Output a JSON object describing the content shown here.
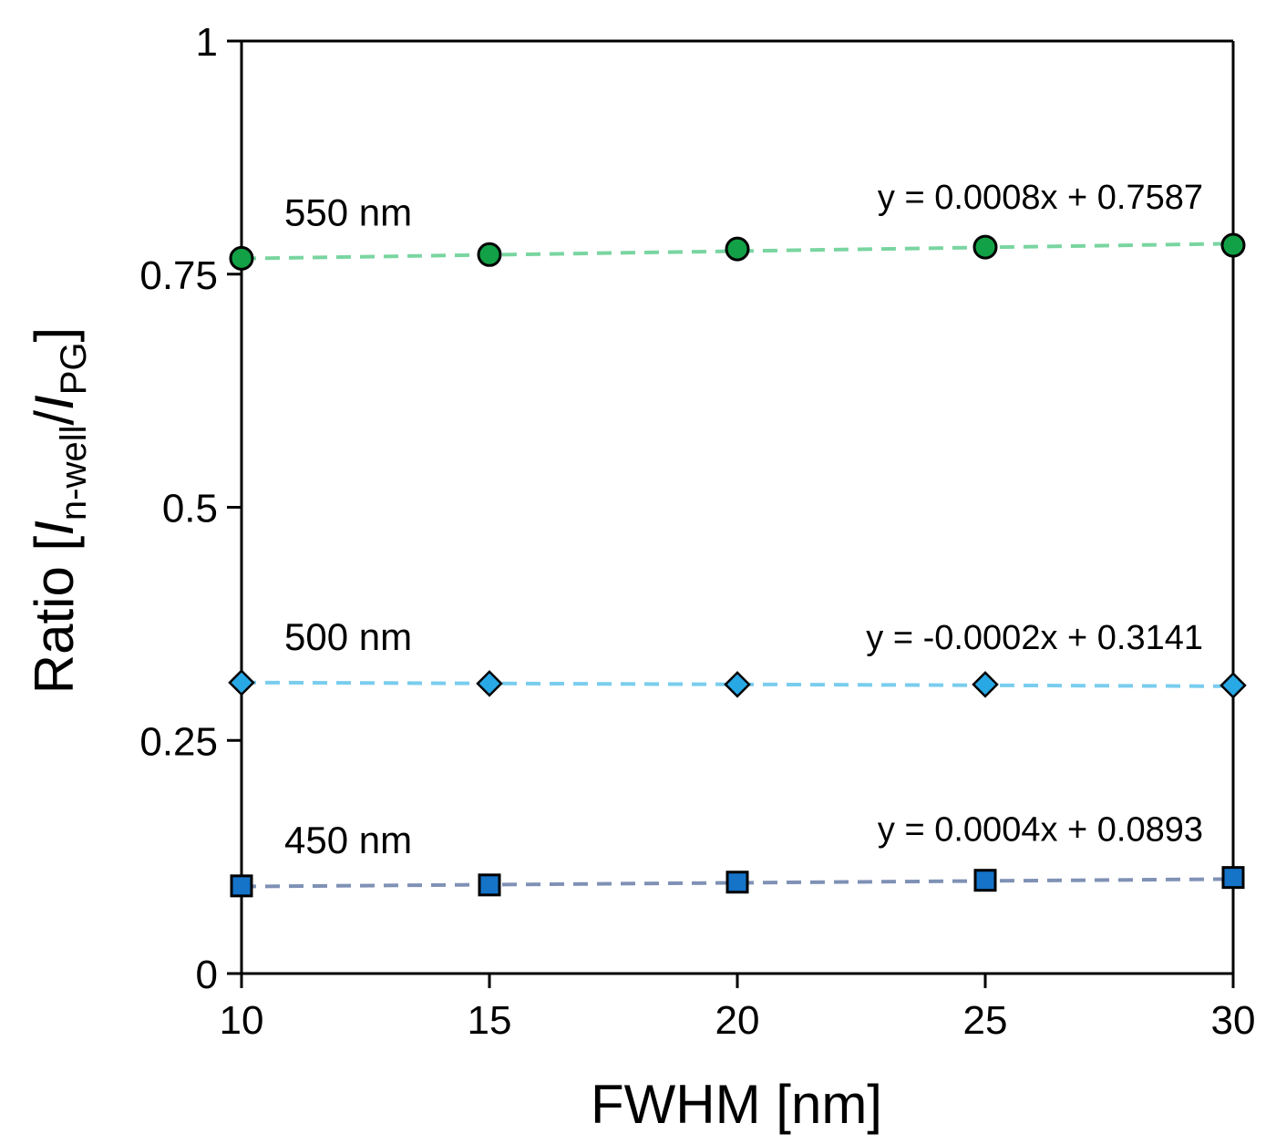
{
  "chart_data": {
    "type": "scatter",
    "xlabel": "FWHM [nm]",
    "ylabel": {
      "prefix": "Ratio [",
      "i1": "I",
      "sub1": "n-well",
      "slash": "/",
      "i2": "I",
      "sub2": "PG",
      "suffix": "]"
    },
    "xlim": [
      10,
      30
    ],
    "ylim": [
      0,
      1
    ],
    "x_ticks": [
      "10",
      "15",
      "20",
      "25",
      "30"
    ],
    "y_ticks": [
      "0",
      "0.25",
      "0.5",
      "0.75",
      "1"
    ],
    "x": [
      10,
      15,
      20,
      25,
      30
    ],
    "grid": false,
    "series": [
      {
        "name": "550 nm",
        "marker": "circle",
        "color": "#12a146",
        "line_color": "#79d5a0",
        "values": [
          0.767,
          0.771,
          0.777,
          0.779,
          0.781
        ],
        "equation": "y = 0.0008x + 0.7587",
        "fit": {
          "slope": 0.0008,
          "intercept": 0.7587
        }
      },
      {
        "name": "500 nm",
        "marker": "diamond",
        "color": "#29a8e6",
        "line_color": "#79cdee",
        "values": [
          0.312,
          0.311,
          0.31,
          0.31,
          0.309
        ],
        "equation": "y = -0.0002x + 0.3141",
        "fit": {
          "slope": -0.0002,
          "intercept": 0.3141
        }
      },
      {
        "name": "450 nm",
        "marker": "square",
        "color": "#1573c8",
        "line_color": "#7f91b5",
        "values": [
          0.094,
          0.095,
          0.098,
          0.1,
          0.103
        ],
        "equation": "y = 0.0004x + 0.0893",
        "fit": {
          "slope": 0.0004,
          "intercept": 0.0893
        }
      }
    ]
  }
}
